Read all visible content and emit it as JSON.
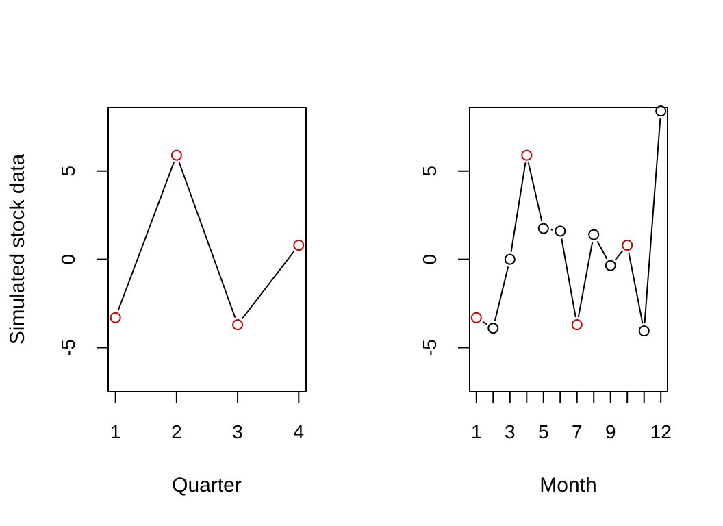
{
  "chart_data": [
    {
      "type": "line",
      "xlabel": "Quarter",
      "ylabel": "Simulated stock data",
      "x": [
        1,
        2,
        3,
        4
      ],
      "x_tick_labels": [
        "1",
        "2",
        "3",
        "4"
      ],
      "y_tick_labels": [
        "-5",
        "0",
        "5"
      ],
      "xlim": [
        0.88,
        4.12
      ],
      "ylim": [
        -7.5,
        8.6
      ],
      "series": [
        {
          "values": [
            -3.3,
            5.9,
            -3.7,
            0.8
          ],
          "point_colors": [
            "#cc0000",
            "#cc0000",
            "#cc0000",
            "#cc0000"
          ]
        }
      ]
    },
    {
      "type": "line",
      "xlabel": "Month",
      "ylabel": "",
      "x": [
        1,
        2,
        3,
        4,
        5,
        6,
        7,
        8,
        9,
        10,
        11,
        12
      ],
      "x_tick_labels": [
        "1",
        "",
        "3",
        "",
        "5",
        "",
        "7",
        "",
        "9",
        "",
        "",
        "12"
      ],
      "y_tick_labels": [
        "-5",
        "0",
        "5"
      ],
      "xlim": [
        0.6,
        12.4
      ],
      "ylim": [
        -7.5,
        8.6
      ],
      "series": [
        {
          "values": [
            -3.3,
            -3.9,
            0.0,
            5.9,
            1.75,
            1.6,
            -3.7,
            1.4,
            -0.35,
            0.8,
            -4.05,
            8.4
          ],
          "point_colors": [
            "#cc0000",
            "#000000",
            "#000000",
            "#cc0000",
            "#000000",
            "#000000",
            "#cc0000",
            "#000000",
            "#000000",
            "#cc0000",
            "#000000",
            "#000000"
          ]
        }
      ]
    }
  ]
}
